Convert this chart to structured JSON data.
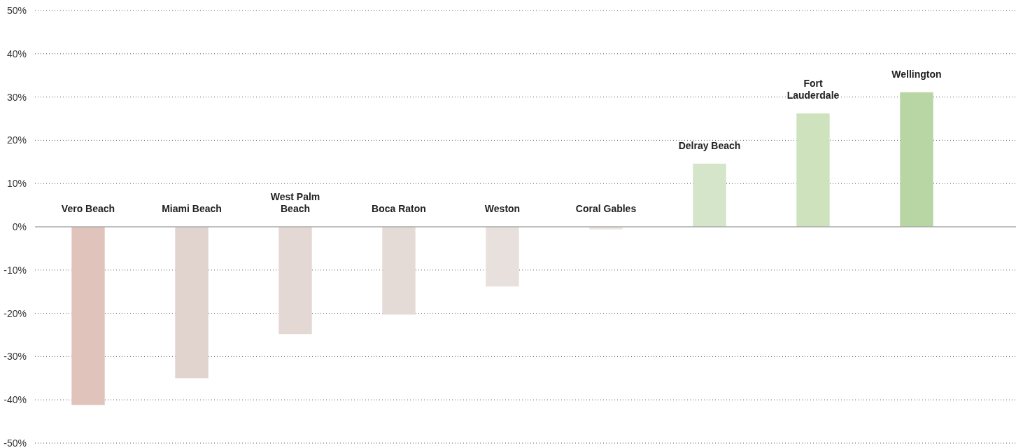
{
  "chart_data": {
    "type": "bar",
    "categories": [
      "Vero Beach",
      "Miami Beach",
      "West Palm Beach",
      "Boca Raton",
      "Weston",
      "Coral Gables",
      "Delray Beach",
      "Fort Lauderdale",
      "Wellington"
    ],
    "values": [
      -41.2,
      -35,
      -24.8,
      -20.3,
      -13.8,
      -0.6,
      14.6,
      26.2,
      31.1
    ],
    "colors": [
      "#e0c4bb",
      "#e1d4cf",
      "#e3d8d3",
      "#e4dbd7",
      "#e7e0dd",
      "#ebe5e2",
      "#d4e5c9",
      "#cde2bd",
      "#b8d6a3"
    ],
    "ylim": [
      -50,
      50
    ],
    "yticks": [
      {
        "value": -50,
        "label": "-50%"
      },
      {
        "value": -40,
        "label": "-40%"
      },
      {
        "value": -30,
        "label": "-30%"
      },
      {
        "value": -20,
        "label": "-20%"
      },
      {
        "value": -10,
        "label": "-10%"
      },
      {
        "value": 0,
        "label": "0%"
      },
      {
        "value": 10,
        "label": "10%"
      },
      {
        "value": 20,
        "label": "20%"
      },
      {
        "value": 30,
        "label": "30%"
      },
      {
        "value": 40,
        "label": "40%"
      },
      {
        "value": 50,
        "label": "50%"
      }
    ],
    "grid": "y"
  }
}
